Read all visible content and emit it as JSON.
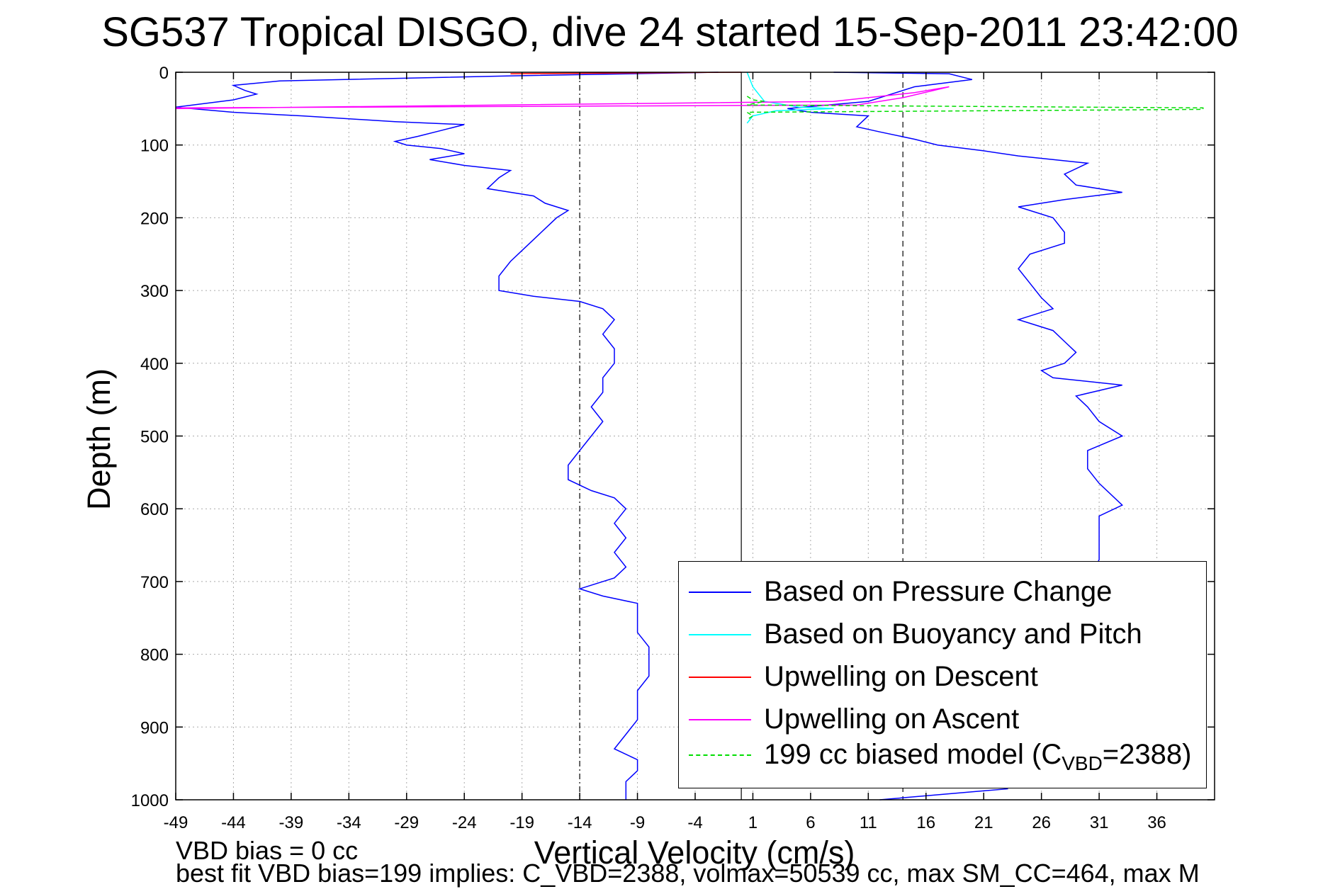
{
  "chart_data": {
    "type": "line",
    "title": "SG537 Tropical DISGO, dive 24 started 15-Sep-2011 23:42:00",
    "xlabel": "Vertical Velocity (cm/s)",
    "ylabel": "Depth (m)",
    "xlim": [
      -49,
      41
    ],
    "ylim": [
      0,
      1000
    ],
    "y_reversed": true,
    "grid": true,
    "x_ticks": [
      -49,
      -44,
      -39,
      -34,
      -29,
      -24,
      -19,
      -14,
      -9,
      -4,
      1,
      6,
      11,
      16,
      21,
      26,
      31,
      36
    ],
    "y_ticks": [
      0,
      100,
      200,
      300,
      400,
      500,
      600,
      700,
      800,
      900,
      1000
    ],
    "reference_lines": [
      {
        "x": -14,
        "style": "dashdot"
      },
      {
        "x": 0,
        "style": "solid"
      },
      {
        "x": 14,
        "style": "dashed"
      }
    ],
    "legend_position": "bottom-right",
    "legend": [
      {
        "label": "Based on Pressure Change",
        "color": "#0000ff",
        "dash": "solid"
      },
      {
        "label": "Based on Buoyancy and Pitch",
        "color": "#00ffff",
        "dash": "solid"
      },
      {
        "label": "Upwelling on Descent",
        "color": "#ff0000",
        "dash": "solid"
      },
      {
        "label": "Upwelling on Ascent",
        "color": "#ff00ff",
        "dash": "solid"
      },
      {
        "label_main": "199 cc biased model (C",
        "label_sub": "VBD",
        "label_tail": "=2388)",
        "color": "#00dd00",
        "dash": "dashed"
      }
    ],
    "series": [
      {
        "name": "Based on Pressure Change (descent)",
        "color": "#0000ff",
        "points": [
          [
            -2,
            0
          ],
          [
            -20,
            5
          ],
          [
            -40,
            12
          ],
          [
            -44,
            18
          ],
          [
            -43,
            25
          ],
          [
            -42,
            30
          ],
          [
            -44,
            38
          ],
          [
            -49,
            48
          ],
          [
            -44,
            55
          ],
          [
            -38,
            60
          ],
          [
            -30,
            68
          ],
          [
            -24,
            72
          ],
          [
            -26,
            80
          ],
          [
            -28,
            88
          ],
          [
            -30,
            95
          ],
          [
            -29,
            100
          ],
          [
            -26,
            105
          ],
          [
            -24,
            112
          ],
          [
            -27,
            120
          ],
          [
            -24,
            128
          ],
          [
            -20,
            135
          ],
          [
            -21,
            145
          ],
          [
            -22,
            160
          ],
          [
            -18,
            170
          ],
          [
            -17,
            180
          ],
          [
            -15,
            190
          ],
          [
            -16,
            200
          ],
          [
            -17,
            215
          ],
          [
            -18,
            230
          ],
          [
            -19,
            245
          ],
          [
            -20,
            260
          ],
          [
            -21,
            280
          ],
          [
            -21,
            300
          ],
          [
            -18,
            308
          ],
          [
            -14,
            315
          ],
          [
            -12,
            325
          ],
          [
            -11,
            340
          ],
          [
            -12,
            360
          ],
          [
            -11,
            380
          ],
          [
            -11,
            400
          ],
          [
            -12,
            420
          ],
          [
            -12,
            440
          ],
          [
            -13,
            460
          ],
          [
            -12,
            480
          ],
          [
            -13,
            500
          ],
          [
            -14,
            520
          ],
          [
            -15,
            540
          ],
          [
            -15,
            560
          ],
          [
            -13,
            575
          ],
          [
            -11,
            585
          ],
          [
            -10,
            600
          ],
          [
            -11,
            620
          ],
          [
            -10,
            640
          ],
          [
            -11,
            660
          ],
          [
            -10,
            680
          ],
          [
            -11,
            695
          ],
          [
            -14,
            710
          ],
          [
            -12,
            720
          ],
          [
            -9,
            730
          ],
          [
            -9,
            750
          ],
          [
            -9,
            770
          ],
          [
            -8,
            790
          ],
          [
            -8,
            810
          ],
          [
            -8,
            830
          ],
          [
            -9,
            850
          ],
          [
            -9,
            870
          ],
          [
            -9,
            890
          ],
          [
            -10,
            910
          ],
          [
            -11,
            930
          ],
          [
            -9,
            945
          ],
          [
            -9,
            960
          ],
          [
            -10,
            975
          ],
          [
            -10,
            990
          ],
          [
            -10,
            1000
          ]
        ]
      },
      {
        "name": "Based on Pressure Change (ascent)",
        "color": "#0000ff",
        "points": [
          [
            8,
            0
          ],
          [
            18,
            2
          ],
          [
            20,
            10
          ],
          [
            15,
            20
          ],
          [
            13,
            30
          ],
          [
            11,
            40
          ],
          [
            4,
            50
          ],
          [
            6,
            55
          ],
          [
            11,
            60
          ],
          [
            10,
            75
          ],
          [
            12,
            82
          ],
          [
            15,
            92
          ],
          [
            17,
            100
          ],
          [
            21,
            108
          ],
          [
            24,
            115
          ],
          [
            27,
            120
          ],
          [
            30,
            125
          ],
          [
            28,
            140
          ],
          [
            29,
            155
          ],
          [
            33,
            165
          ],
          [
            28,
            175
          ],
          [
            24,
            185
          ],
          [
            27,
            200
          ],
          [
            28,
            220
          ],
          [
            28,
            235
          ],
          [
            25,
            250
          ],
          [
            24,
            270
          ],
          [
            25,
            290
          ],
          [
            26,
            310
          ],
          [
            27,
            325
          ],
          [
            24,
            340
          ],
          [
            27,
            355
          ],
          [
            28,
            370
          ],
          [
            29,
            385
          ],
          [
            28,
            400
          ],
          [
            26,
            410
          ],
          [
            27,
            420
          ],
          [
            33,
            430
          ],
          [
            29,
            445
          ],
          [
            30,
            460
          ],
          [
            31,
            480
          ],
          [
            33,
            500
          ],
          [
            30,
            520
          ],
          [
            30,
            545
          ],
          [
            31,
            565
          ],
          [
            33,
            595
          ],
          [
            31,
            610
          ],
          [
            31,
            640
          ],
          [
            31,
            670
          ],
          [
            30,
            700
          ],
          [
            28,
            730
          ],
          [
            27,
            760
          ],
          [
            26,
            790
          ],
          [
            25,
            820
          ],
          [
            24,
            850
          ],
          [
            23,
            880
          ],
          [
            21,
            920
          ],
          [
            19,
            950
          ],
          [
            21,
            970
          ],
          [
            23,
            985
          ],
          [
            12,
            1000
          ]
        ]
      },
      {
        "name": "Based on Buoyancy and Pitch",
        "color": "#00ffff",
        "points": [
          [
            0.5,
            0
          ],
          [
            1,
            20
          ],
          [
            2,
            40
          ],
          [
            5,
            48
          ],
          [
            8,
            50
          ],
          [
            3,
            53
          ],
          [
            1,
            60
          ],
          [
            0.5,
            70
          ]
        ]
      },
      {
        "name": "Upwelling on Descent",
        "color": "#ff0000",
        "points": [
          [
            0,
            0
          ],
          [
            -10,
            1
          ],
          [
            -20,
            2
          ]
        ]
      },
      {
        "name": "Upwelling on Ascent",
        "color": "#ff00ff",
        "points": [
          [
            -49,
            49
          ],
          [
            10,
            45
          ],
          [
            14,
            35
          ],
          [
            18,
            20
          ],
          [
            15,
            28
          ],
          [
            8,
            40
          ],
          [
            -49,
            50
          ]
        ]
      },
      {
        "name": "199 cc biased model",
        "color": "#00dd00",
        "points": [
          [
            0.5,
            33
          ],
          [
            1,
            38
          ],
          [
            2,
            40
          ],
          [
            0.5,
            45
          ],
          [
            40,
            49
          ],
          [
            40,
            51
          ],
          [
            0.5,
            55
          ],
          [
            1,
            60
          ],
          [
            0.5,
            65
          ]
        ]
      }
    ]
  },
  "notes": {
    "vbd_bias": "VBD bias = 0 cc",
    "best_fit": "best fit VBD bias=199 implies: C_VBD=2388, volmax=50539 cc, max SM_CC=464, max M"
  }
}
